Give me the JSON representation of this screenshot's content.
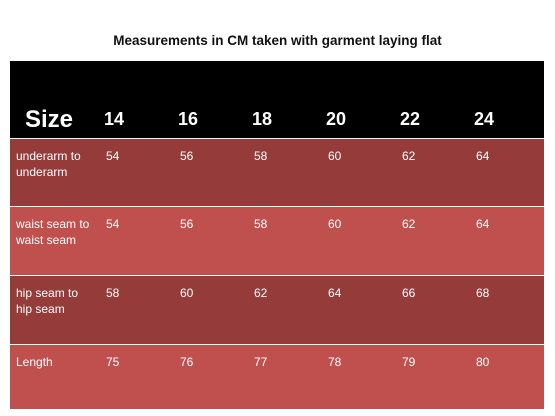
{
  "title": "Measurements in CM taken with garment laying flat",
  "table": {
    "header": {
      "label": "Size",
      "sizes": [
        "14",
        "16",
        "18",
        "20",
        "22",
        "24"
      ]
    },
    "rows": [
      {
        "label": "underarm to underarm",
        "values": [
          "54",
          "56",
          "58",
          "60",
          "62",
          "64"
        ]
      },
      {
        "label": "waist seam to waist seam",
        "values": [
          "54",
          "56",
          "58",
          "60",
          "62",
          "64"
        ]
      },
      {
        "label": "hip seam to hip seam",
        "values": [
          "58",
          "60",
          "62",
          "64",
          "66",
          "68"
        ]
      },
      {
        "label": "Length",
        "values": [
          "75",
          "76",
          "77",
          "78",
          "79",
          "80"
        ]
      }
    ]
  },
  "colors": {
    "header_bg": "#000000",
    "row_dark": "#953c3b",
    "row_light": "#c0504d",
    "text": "#ffffff"
  }
}
